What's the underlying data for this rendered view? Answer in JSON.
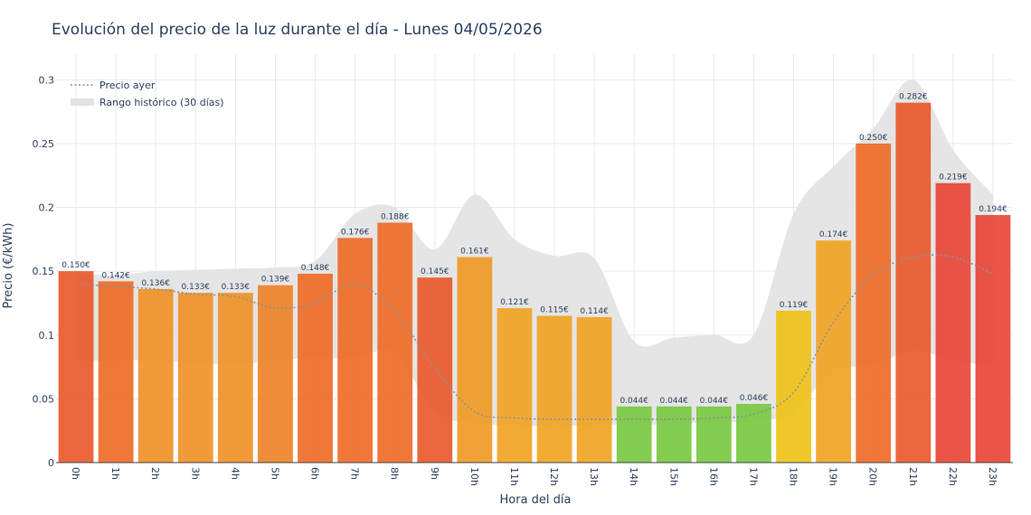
{
  "chart_data": {
    "type": "bar",
    "title": "Evolución del precio de la luz durante el día - Lunes 04/05/2026",
    "xlabel": "Hora del día",
    "ylabel": "Precio (€/kWh)",
    "ylim": [
      0,
      0.32
    ],
    "yticks": [
      "0",
      "0.05",
      "0.1",
      "0.15",
      "0.2",
      "0.25",
      "0.3"
    ],
    "ytick_values": [
      0,
      0.05,
      0.1,
      0.15,
      0.2,
      0.25,
      0.3
    ],
    "grid": true,
    "legend_position": "top-left",
    "categories": [
      "0h",
      "1h",
      "2h",
      "3h",
      "4h",
      "5h",
      "6h",
      "7h",
      "8h",
      "9h",
      "10h",
      "11h",
      "12h",
      "13h",
      "14h",
      "15h",
      "16h",
      "17h",
      "18h",
      "19h",
      "20h",
      "21h",
      "22h",
      "23h"
    ],
    "values": [
      0.15,
      0.142,
      0.136,
      0.133,
      0.133,
      0.139,
      0.148,
      0.176,
      0.188,
      0.145,
      0.161,
      0.121,
      0.115,
      0.114,
      0.044,
      0.044,
      0.044,
      0.046,
      0.119,
      0.174,
      0.25,
      0.282,
      0.219,
      0.194
    ],
    "value_labels": [
      "0.150€",
      "0.142€",
      "0.136€",
      "0.133€",
      "0.133€",
      "0.139€",
      "0.148€",
      "0.176€",
      "0.188€",
      "0.145€",
      "0.161€",
      "0.121€",
      "0.115€",
      "0.114€",
      "0.044€",
      "0.044€",
      "0.044€",
      "0.046€",
      "0.119€",
      "0.174€",
      "0.250€",
      "0.282€",
      "0.219€",
      "0.194€"
    ],
    "bar_colors": [
      "#ea5a2e",
      "#ee6e2a",
      "#f0922a",
      "#f0922a",
      "#f0922a",
      "#ee832a",
      "#ee6e2a",
      "#ee6e2a",
      "#ee6e2a",
      "#ea5a2e",
      "#f09b28",
      "#f0a526",
      "#f0a526",
      "#f0a526",
      "#7ac943",
      "#7ac943",
      "#7ac943",
      "#7ac943",
      "#eec318",
      "#f0a526",
      "#ee6e2a",
      "#ea5a2e",
      "#e8483a",
      "#e8483a"
    ],
    "series": [
      {
        "name": "Precio ayer",
        "style": "dotted",
        "color": "#8a9099",
        "values": [
          0.14,
          0.138,
          0.136,
          0.132,
          0.13,
          0.121,
          0.125,
          0.14,
          0.118,
          0.074,
          0.04,
          0.035,
          0.034,
          0.034,
          0.034,
          0.034,
          0.035,
          0.038,
          0.055,
          0.11,
          0.147,
          0.161,
          0.161,
          0.148
        ]
      },
      {
        "name": "Rango histórico (30 días)",
        "style": "band",
        "color": "#e2e2e2",
        "upper": [
          0.148,
          0.147,
          0.15,
          0.151,
          0.152,
          0.153,
          0.158,
          0.195,
          0.2,
          0.167,
          0.21,
          0.175,
          0.162,
          0.16,
          0.095,
          0.098,
          0.1,
          0.1,
          0.195,
          0.232,
          0.262,
          0.3,
          0.245,
          0.21
        ],
        "lower": [
          0.08,
          0.08,
          0.08,
          0.078,
          0.077,
          0.08,
          0.082,
          0.082,
          0.086,
          0.04,
          0.031,
          0.029,
          0.029,
          0.029,
          0.03,
          0.03,
          0.032,
          0.032,
          0.04,
          0.072,
          0.076,
          0.088,
          0.08,
          0.076
        ]
      }
    ]
  }
}
